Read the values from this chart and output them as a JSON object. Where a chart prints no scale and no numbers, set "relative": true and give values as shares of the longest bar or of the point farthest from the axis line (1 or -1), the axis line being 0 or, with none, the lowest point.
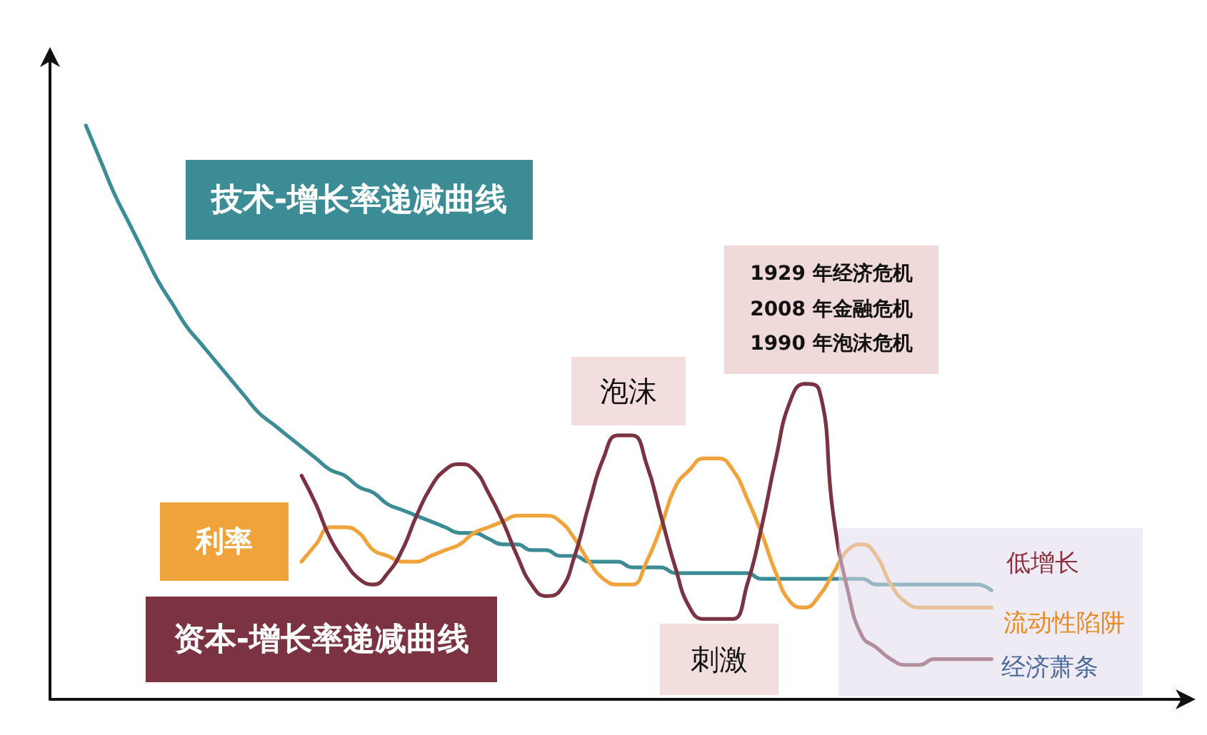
{
  "chart_data": {
    "type": "line",
    "relative": true,
    "categories": [
      null,
      null,
      null,
      null,
      null,
      null,
      null,
      null,
      null,
      null,
      null,
      null,
      null,
      null,
      null,
      null,
      null,
      null,
      null,
      null,
      null,
      null,
      null,
      null,
      null,
      null,
      null,
      null,
      null,
      null,
      null,
      null,
      null,
      null,
      null,
      null,
      null,
      null,
      null,
      null,
      null,
      null,
      null,
      null,
      null,
      null,
      null,
      null,
      null,
      null,
      null,
      null,
      null,
      null,
      null,
      null,
      null,
      null,
      null,
      null,
      null,
      null,
      null,
      null
    ],
    "series": [
      {
        "name": "技术-增长率递减曲线",
        "color": "#3b8c95",
        "values": [
          1.0,
          0.94,
          0.88,
          0.83,
          0.78,
          0.73,
          0.69,
          0.65,
          0.62,
          0.59,
          0.56,
          0.53,
          0.5,
          0.48,
          0.46,
          0.44,
          0.42,
          0.4,
          0.39,
          0.37,
          0.36,
          0.34,
          0.33,
          0.32,
          0.31,
          0.3,
          0.29,
          0.29,
          0.28,
          0.27,
          0.27,
          0.26,
          0.26,
          0.25,
          0.25,
          0.24,
          0.24,
          0.24,
          0.23,
          0.23,
          0.23,
          0.22,
          0.22,
          0.22,
          0.22,
          0.22,
          0.22,
          0.21,
          0.21,
          0.21,
          0.21,
          0.21,
          0.21,
          0.21,
          0.21,
          0.2,
          0.2,
          0.2,
          0.2,
          0.2,
          0.2,
          0.2,
          0.2,
          0.19
        ]
      },
      {
        "name": "利率",
        "color": "#f0a33a",
        "values": [
          null,
          null,
          null,
          null,
          null,
          null,
          null,
          null,
          null,
          null,
          null,
          null,
          null,
          null,
          null,
          0.24,
          0.27,
          0.3,
          0.3,
          0.29,
          0.26,
          0.25,
          0.24,
          0.24,
          0.25,
          0.26,
          0.27,
          0.29,
          0.3,
          0.31,
          0.32,
          0.32,
          0.32,
          0.31,
          0.28,
          0.24,
          0.21,
          0.2,
          0.2,
          0.24,
          0.3,
          0.37,
          0.4,
          0.42,
          0.42,
          0.4,
          0.35,
          0.29,
          0.22,
          0.17,
          0.16,
          0.18,
          0.22,
          0.26,
          0.27,
          0.25,
          0.2,
          0.17,
          0.16,
          0.16,
          0.16,
          0.16,
          0.16,
          0.16
        ]
      },
      {
        "name": "资本-增长率递减曲线",
        "color": "#7b3342",
        "values": [
          null,
          null,
          null,
          null,
          null,
          null,
          null,
          null,
          null,
          null,
          null,
          null,
          null,
          null,
          null,
          0.39,
          0.34,
          0.28,
          0.24,
          0.21,
          0.2,
          0.22,
          0.26,
          0.32,
          0.37,
          0.4,
          0.41,
          0.4,
          0.36,
          0.31,
          0.25,
          0.2,
          0.18,
          0.19,
          0.25,
          0.34,
          0.42,
          0.46,
          0.46,
          0.41,
          0.32,
          0.23,
          0.16,
          0.14,
          0.14,
          0.14,
          0.2,
          0.3,
          0.42,
          0.52,
          0.55,
          0.54,
          0.32,
          0.19,
          0.11,
          0.09,
          0.07,
          0.06,
          0.06,
          0.07,
          0.07,
          0.07,
          0.07,
          0.07
        ]
      }
    ],
    "annotations": [
      "泡沫",
      "刺激",
      "1929 年经济危机\n2008 年金融危机\n1990 年泡沫危机",
      "低增长",
      "流动性陷阱",
      "经济萧条"
    ]
  }
}
